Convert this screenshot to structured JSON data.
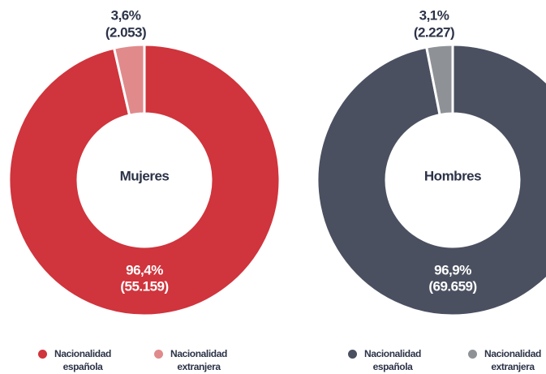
{
  "chart_data": [
    {
      "type": "donut",
      "title": "Mujeres",
      "categories": [
        "Nacionalidad española",
        "Nacionalidad extranjera"
      ],
      "values": [
        96.4,
        3.6
      ],
      "value_labels": [
        "96,4%",
        "3,6%"
      ],
      "counts": [
        55159,
        2053
      ],
      "count_labels": [
        "(55.159)",
        "(2.053)"
      ],
      "colors": [
        "#d0343c",
        "#e08a8c"
      ]
    },
    {
      "type": "donut",
      "title": "Hombres",
      "categories": [
        "Nacionalidad española",
        "Nacionalidad extranjera"
      ],
      "values": [
        96.9,
        3.1
      ],
      "value_labels": [
        "96,9%",
        "3,1%"
      ],
      "counts": [
        69659,
        2227
      ],
      "count_labels": [
        "(69.659)",
        "(2.227)"
      ],
      "colors": [
        "#4a5060",
        "#8e9297"
      ]
    }
  ]
}
